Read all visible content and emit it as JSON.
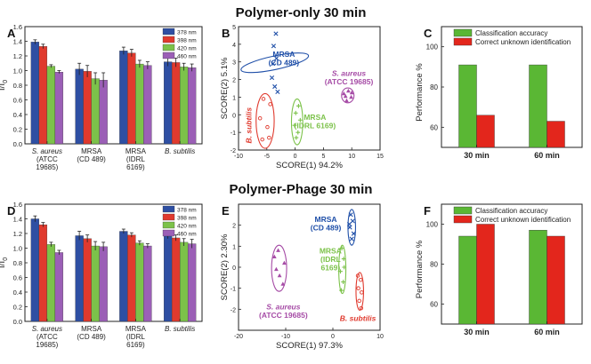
{
  "figure": {
    "top_title": "Polymer-only 30 min",
    "bottom_title": "Polymer-Phage 30 min",
    "legend_wavelengths": [
      "378 nm",
      "398 nm",
      "420 nm",
      "460 nm"
    ],
    "legend_performance": [
      "Classification accuracy",
      "Correct unknown identification"
    ]
  },
  "colors": {
    "w378": "#2e4fa3",
    "w398": "#e03a2e",
    "w420": "#7cc24a",
    "w460": "#9b5fb6",
    "mrsa": "#1f4fa8",
    "aureus": "#a64ca6",
    "subtilis": "#e03a2e",
    "idrl": "#7cc24a",
    "acc": "#5ab734",
    "unk": "#e3261c"
  },
  "chart_data": [
    {
      "panel": "A",
      "type": "bar",
      "ylabel": "I/I",
      "ylabel_sub": "0",
      "ylim": [
        0,
        1.6
      ],
      "yticks": [
        "0.0",
        "0.2",
        "0.4",
        "0.6",
        "0.8",
        "1.0",
        "1.2",
        "1.4",
        "1.6"
      ],
      "categories": [
        {
          "lines": [
            "S. aureus",
            "(ATCC",
            "19685)"
          ],
          "italic_first": true
        },
        {
          "lines": [
            "MRSA",
            "(CD 489)"
          ],
          "italic_first": false
        },
        {
          "lines": [
            "MRSA",
            "(IDRL",
            "6169)"
          ],
          "italic_first": false
        },
        {
          "lines": [
            "B. subtilis"
          ],
          "italic_first": true
        }
      ],
      "series": [
        {
          "name": "378 nm",
          "values": [
            1.39,
            1.02,
            1.27,
            1.12
          ],
          "errors": [
            0.03,
            0.08,
            0.05,
            0.06
          ]
        },
        {
          "name": "398 nm",
          "values": [
            1.33,
            0.99,
            1.24,
            1.11
          ],
          "errors": [
            0.03,
            0.08,
            0.05,
            0.06
          ]
        },
        {
          "name": "420 nm",
          "values": [
            1.06,
            0.89,
            1.09,
            1.05
          ],
          "errors": [
            0.02,
            0.08,
            0.05,
            0.05
          ]
        },
        {
          "name": "460 nm",
          "values": [
            0.98,
            0.87,
            1.07,
            1.04
          ],
          "errors": [
            0.02,
            0.1,
            0.05,
            0.05
          ]
        }
      ]
    },
    {
      "panel": "B",
      "type": "scatter",
      "xlabel": "SCORE(1) 94.2%",
      "ylabel": "SCORE(2) 5.1%",
      "xlim": [
        -10,
        15
      ],
      "ylim": [
        -2,
        5
      ],
      "xticks": [
        -10,
        -5,
        0,
        5,
        10,
        15
      ],
      "yticks": [
        -2,
        -1,
        0,
        1,
        2,
        3,
        4,
        5
      ],
      "groups": [
        {
          "key": "mrsa",
          "marker": "x",
          "label_lines": [
            "MRSA",
            "(CD 489)"
          ],
          "label_at": [
            -2,
            3.3
          ],
          "points": [
            [
              -3.4,
              4.6
            ],
            [
              -3.8,
              3.9
            ],
            [
              -3.3,
              3.2
            ],
            [
              -4.1,
              2.1
            ],
            [
              -3.6,
              1.6
            ],
            [
              -3.1,
              1.3
            ],
            [
              -3.9,
              2.9
            ]
          ],
          "ellipse": {
            "cx": -3.6,
            "cy": 2.95,
            "rx": 1.2,
            "ry": 1.95,
            "angle": 78
          }
        },
        {
          "key": "aureus",
          "marker": "triangle",
          "label_lines": [
            "S. aureus",
            "(ATCC 19685)"
          ],
          "label_at": [
            9.5,
            2.2
          ],
          "italic_first": true,
          "points": [
            [
              8.6,
              1.2
            ],
            [
              9.4,
              1.35
            ],
            [
              9.9,
              1.0
            ],
            [
              9.1,
              0.8
            ],
            [
              10.0,
              1.25
            ],
            [
              8.9,
              1.05
            ]
          ],
          "ellipse": {
            "cx": 9.3,
            "cy": 1.1,
            "rx": 1.1,
            "ry": 0.42,
            "angle": 0
          }
        },
        {
          "key": "subtilis",
          "marker": "circle",
          "label_lines": [
            "B. subtilis"
          ],
          "label_at": [
            -7.7,
            -0.6
          ],
          "italic_first": true,
          "vertical": true,
          "points": [
            [
              -5.6,
              0.9
            ],
            [
              -4.4,
              0.6
            ],
            [
              -6.2,
              -0.2
            ],
            [
              -4.9,
              -0.7
            ],
            [
              -5.8,
              -1.4
            ],
            [
              -4.6,
              -1.3
            ]
          ],
          "ellipse": {
            "cx": -5.3,
            "cy": -0.35,
            "rx": 1.6,
            "ry": 1.55,
            "angle": 0
          }
        },
        {
          "key": "idrl",
          "marker": "plus",
          "label_lines": [
            "MRSA",
            "(IDRL 6169)"
          ],
          "label_at": [
            3.5,
            -0.3
          ],
          "points": [
            [
              0.1,
              0.1
            ],
            [
              0.6,
              0.5
            ],
            [
              0.9,
              -0.3
            ],
            [
              -0.1,
              -0.6
            ],
            [
              0.5,
              -1.0
            ],
            [
              0.2,
              -1.3
            ]
          ],
          "ellipse": {
            "cx": 0.35,
            "cy": -0.4,
            "rx": 1.0,
            "ry": 1.3,
            "angle": 0
          }
        }
      ]
    },
    {
      "panel": "C",
      "type": "bar",
      "ylabel": "Performance %",
      "ylim": [
        50,
        110
      ],
      "yticks": [
        60,
        80,
        100
      ],
      "categories": [
        "30 min",
        "60 min"
      ],
      "series": [
        {
          "name": "Classification accuracy",
          "values": [
            91,
            91
          ]
        },
        {
          "name": "Correct unknown identification",
          "values": [
            66,
            63
          ]
        }
      ]
    },
    {
      "panel": "D",
      "type": "bar",
      "ylabel": "I/I",
      "ylabel_sub": "0",
      "ylim": [
        0,
        1.6
      ],
      "yticks": [
        "0.0",
        "0.2",
        "0.4",
        "0.6",
        "0.8",
        "1.0",
        "1.2",
        "1.4",
        "1.6"
      ],
      "categories": [
        {
          "lines": [
            "S. aureus",
            "(ATCC",
            "19685)"
          ],
          "italic_first": true
        },
        {
          "lines": [
            "MRSA",
            "(CD 489)"
          ],
          "italic_first": false
        },
        {
          "lines": [
            "MRSA",
            "(IDRL",
            "6169)"
          ],
          "italic_first": false
        },
        {
          "lines": [
            "B. subtilis"
          ],
          "italic_first": true
        }
      ],
      "series": [
        {
          "name": "378 nm",
          "values": [
            1.4,
            1.17,
            1.23,
            1.17
          ],
          "errors": [
            0.04,
            0.06,
            0.03,
            0.04
          ]
        },
        {
          "name": "398 nm",
          "values": [
            1.32,
            1.13,
            1.18,
            1.14
          ],
          "errors": [
            0.03,
            0.05,
            0.03,
            0.04
          ]
        },
        {
          "name": "420 nm",
          "values": [
            1.05,
            1.03,
            1.07,
            1.08
          ],
          "errors": [
            0.03,
            0.06,
            0.03,
            0.05
          ]
        },
        {
          "name": "460 nm",
          "values": [
            0.94,
            1.02,
            1.03,
            1.06
          ],
          "errors": [
            0.03,
            0.06,
            0.03,
            0.06
          ]
        }
      ]
    },
    {
      "panel": "E",
      "type": "scatter",
      "xlabel": "SCORE(1) 97.3%",
      "ylabel": "SCORE(2) 2.30%",
      "xlim": [
        -20,
        10
      ],
      "ylim": [
        -3,
        3
      ],
      "xticks": [
        -20,
        -10,
        0,
        10
      ],
      "yticks": [
        -2,
        -1,
        0,
        1,
        2
      ],
      "groups": [
        {
          "key": "mrsa",
          "marker": "x",
          "label_lines": [
            "MRSA",
            "(CD 489)"
          ],
          "label_at": [
            -1.5,
            2.15
          ],
          "points": [
            [
              3.8,
              2.5
            ],
            [
              4.2,
              2.2
            ],
            [
              3.6,
              1.9
            ],
            [
              4.4,
              1.6
            ],
            [
              4.0,
              1.35
            ],
            [
              3.5,
              2.05
            ]
          ],
          "ellipse": {
            "cx": 4.0,
            "cy": 1.9,
            "rx": 0.8,
            "ry": 0.85,
            "angle": 0
          }
        },
        {
          "key": "aureus",
          "marker": "triangle",
          "label_lines": [
            "S. aureus",
            "(ATCC 19685)"
          ],
          "label_at": [
            -10.5,
            -2.0
          ],
          "italic_first": true,
          "points": [
            [
              -12.4,
              0.5
            ],
            [
              -11.6,
              0.8
            ],
            [
              -10.3,
              0.2
            ],
            [
              -11.3,
              -0.4
            ],
            [
              -10.6,
              -0.8
            ],
            [
              -12.0,
              -0.1
            ]
          ],
          "ellipse": {
            "cx": -11.4,
            "cy": -0.05,
            "rx": 1.6,
            "ry": 1.1,
            "angle": 0
          }
        },
        {
          "key": "subtilis",
          "marker": "circle",
          "label_lines": [
            "B. subtilis"
          ],
          "label_at": [
            5.3,
            -2.55
          ],
          "italic_first": true,
          "points": [
            [
              5.3,
              -0.4
            ],
            [
              5.9,
              -0.6
            ],
            [
              5.4,
              -1.0
            ],
            [
              6.1,
              -1.2
            ],
            [
              5.6,
              -1.6
            ],
            [
              6.0,
              -1.95
            ]
          ],
          "ellipse": {
            "cx": 5.7,
            "cy": -1.15,
            "rx": 0.8,
            "ry": 0.9,
            "angle": 0
          }
        },
        {
          "key": "idrl",
          "marker": "plus",
          "label_lines": [
            "MRSA",
            "(IDRL",
            "6169)"
          ],
          "label_at": [
            -0.5,
            0.65
          ],
          "points": [
            [
              1.9,
              0.9
            ],
            [
              2.3,
              0.4
            ],
            [
              1.6,
              -0.2
            ],
            [
              2.2,
              -0.7
            ],
            [
              1.8,
              -1.1
            ],
            [
              2.4,
              0.0
            ]
          ],
          "ellipse": {
            "cx": 2.0,
            "cy": -0.1,
            "rx": 0.75,
            "ry": 1.15,
            "angle": 0
          }
        }
      ]
    },
    {
      "panel": "F",
      "type": "bar",
      "ylabel": "Performance %",
      "ylim": [
        50,
        110
      ],
      "yticks": [
        60,
        80,
        100
      ],
      "categories": [
        "30 min",
        "60 min"
      ],
      "series": [
        {
          "name": "Classification accuracy",
          "values": [
            94,
            97
          ]
        },
        {
          "name": "Correct unknown identification",
          "values": [
            100,
            94
          ]
        }
      ]
    }
  ]
}
